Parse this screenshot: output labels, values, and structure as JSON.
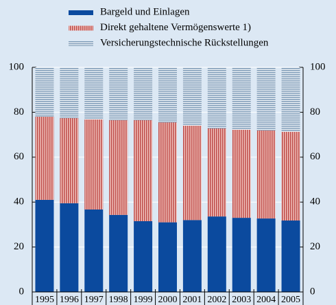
{
  "chart_data": {
    "type": "stacked_bar",
    "categories": [
      "1995",
      "1996",
      "1997",
      "1998",
      "1999",
      "2000",
      "2001",
      "2002",
      "2003",
      "2004",
      "2005"
    ],
    "series": [
      {
        "name": "Bargeld und Einlagen",
        "color": "#0b4a9e",
        "values": [
          41,
          39.5,
          36.7,
          34.3,
          31.5,
          31,
          32,
          33.6,
          33,
          32.7,
          31.8
        ]
      },
      {
        "name": "Direkt gehaltene Vermögenswerte 1)",
        "color": "#c0504d",
        "values": [
          37,
          37.9,
          40.1,
          42.2,
          45,
          44.5,
          42,
          39.2,
          39.2,
          39.2,
          39.5
        ]
      },
      {
        "name": "Versicherungstechnische Rückstellungen",
        "color": "#7f9cb8",
        "values": [
          22,
          22.6,
          23.2,
          23.5,
          23.5,
          24.5,
          26,
          27.2,
          27.8,
          28.1,
          28.7
        ]
      }
    ],
    "ylim": [
      0,
      100
    ],
    "yticks": [
      0,
      20,
      40,
      60,
      80,
      100
    ],
    "y2lim": [
      0,
      100
    ],
    "y2ticks": [
      0,
      20,
      40,
      60,
      80,
      100
    ],
    "grid": true
  }
}
